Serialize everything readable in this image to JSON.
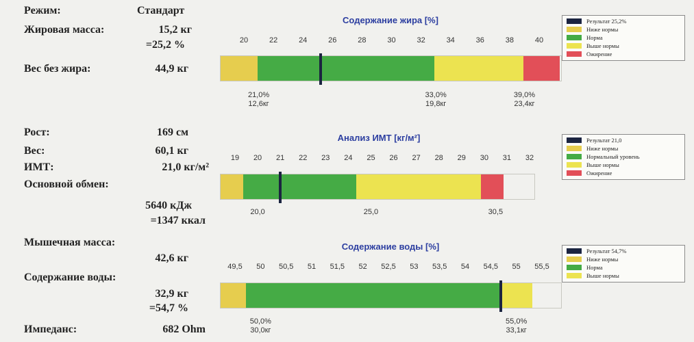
{
  "colors": {
    "result": "#1b2440",
    "below": "#e6cd4e",
    "normal": "#45ab45",
    "above": "#ece350",
    "obesity": "#e24f58",
    "title": "#2c3ea0"
  },
  "stats": {
    "mode_label": "Режим:",
    "mode_value": "Стандарт",
    "fat_mass_label": "Жировая масса:",
    "fat_mass_kg": "15,2 кг",
    "fat_mass_pct": "=25,2 %",
    "lean_label": "Вес без жира:",
    "lean_value": "44,9 кг",
    "height_label": "Рост:",
    "height_value": "169 см",
    "weight_label": "Вес:",
    "weight_value": "60,1 кг",
    "bmi_label": "ИМТ:",
    "bmi_value": "21,0 кг/м²",
    "bmr_label": "Основной обмен:",
    "bmr_kj": "5640 кДж",
    "bmr_kcal": "=1347 ккал",
    "muscle_label": "Мышечная масса:",
    "muscle_value": "42,6 кг",
    "water_label": "Содержание воды:",
    "water_kg": "32,9 кг",
    "water_pct": "=54,7 %",
    "impedance_label": "Импеданс:",
    "impedance_value": "682 Ohm"
  },
  "chart_data": [
    {
      "type": "bar",
      "title": "Содержание жира [%]",
      "ticks": [
        "20",
        "22",
        "24",
        "26",
        "28",
        "30",
        "32",
        "34",
        "36",
        "38",
        "40"
      ],
      "ticks_min": 20,
      "ticks_max": 40,
      "range": [
        18.5,
        41.5
      ],
      "segments": [
        {
          "from": 18.5,
          "to": 21.0,
          "color": "below"
        },
        {
          "from": 21.0,
          "to": 33.0,
          "color": "normal"
        },
        {
          "from": 33.0,
          "to": 39.0,
          "color": "above"
        },
        {
          "from": 39.0,
          "to": 41.5,
          "color": "obesity"
        }
      ],
      "result": 25.2,
      "thresholds": [
        {
          "value": 21.0,
          "pct": "21,0%",
          "kg": "12,6кг"
        },
        {
          "value": 33.0,
          "pct": "33,0%",
          "kg": "19,8кг"
        },
        {
          "value": 39.0,
          "pct": "39,0%",
          "kg": "23,4кг"
        }
      ],
      "legend": [
        "Результат 25,2%",
        "Ниже нормы",
        "Норма",
        "Выше нормы",
        "Ожирение"
      ],
      "legend_colors": [
        "result",
        "below",
        "normal",
        "above",
        "obesity"
      ]
    },
    {
      "type": "bar",
      "title": "Анализ ИМТ [кг/м²]",
      "ticks": [
        "19",
        "20",
        "21",
        "22",
        "23",
        "24",
        "25",
        "26",
        "27",
        "28",
        "29",
        "30",
        "31",
        "32"
      ],
      "ticks_min": 19,
      "ticks_max": 32,
      "range": [
        19,
        31.5
      ],
      "segments": [
        {
          "from": 19,
          "to": 20.0,
          "color": "below"
        },
        {
          "from": 20.0,
          "to": 25.0,
          "color": "normal"
        },
        {
          "from": 25.0,
          "to": 30.5,
          "color": "above"
        },
        {
          "from": 30.5,
          "to": 31.5,
          "color": "obesity"
        }
      ],
      "result": 21.0,
      "thresholds": [
        {
          "value": 20.0,
          "pct": "20,0",
          "kg": ""
        },
        {
          "value": 25.0,
          "pct": "25,0",
          "kg": ""
        },
        {
          "value": 30.5,
          "pct": "30,5",
          "kg": ""
        }
      ],
      "legend": [
        "Результат 21,0",
        "Ниже нормы",
        "Нормальный уровень",
        "Выше нормы",
        "Ожирение"
      ],
      "legend_colors": [
        "result",
        "below",
        "normal",
        "above",
        "obesity"
      ]
    },
    {
      "type": "bar",
      "title": "Содержание воды [%]",
      "ticks": [
        "49,5",
        "50",
        "50,5",
        "51",
        "51,5",
        "52",
        "52,5",
        "53",
        "53,5",
        "54",
        "54,5",
        "55",
        "55,5"
      ],
      "ticks_min": 49.5,
      "ticks_max": 55.5,
      "range": [
        49.5,
        55.6
      ],
      "segments": [
        {
          "from": 49.5,
          "to": 50.0,
          "color": "below"
        },
        {
          "from": 50.0,
          "to": 55.0,
          "color": "normal"
        },
        {
          "from": 55.0,
          "to": 55.6,
          "color": "above"
        }
      ],
      "result": 54.7,
      "thresholds": [
        {
          "value": 50.0,
          "pct": "50,0%",
          "kg": "30,0кг"
        },
        {
          "value": 55.0,
          "pct": "55,0%",
          "kg": "33,1кг"
        }
      ],
      "legend": [
        "Результат 54,7%",
        "Ниже нормы",
        "Норма",
        "Выше нормы"
      ],
      "legend_colors": [
        "result",
        "below",
        "normal",
        "above"
      ]
    }
  ]
}
